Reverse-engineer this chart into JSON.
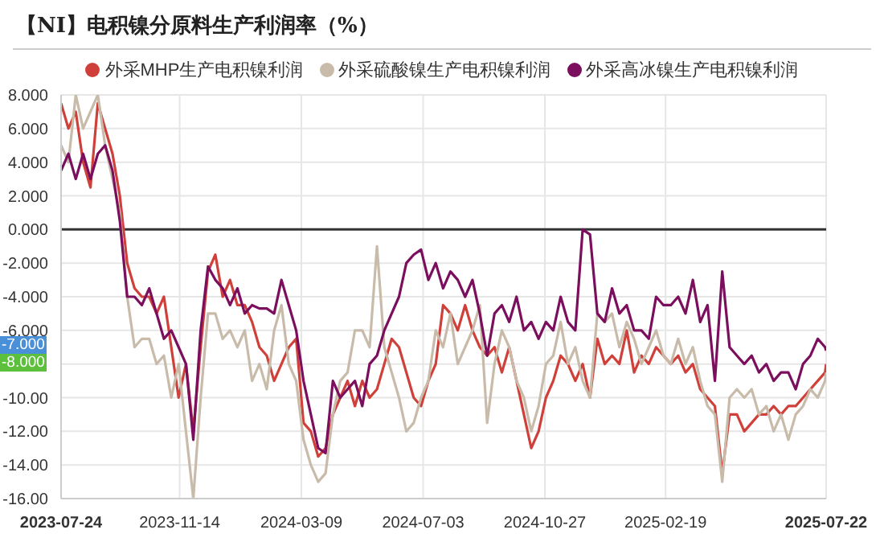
{
  "chart_data": {
    "type": "line",
    "title": "【NI】电积镍分原料生产利润率（%）",
    "x": [
      "2023-07-24",
      "2023-07-31",
      "2023-08-07",
      "2023-08-14",
      "2023-08-21",
      "2023-08-28",
      "2023-09-04",
      "2023-09-11",
      "2023-09-18",
      "2023-09-25",
      "2023-10-02",
      "2023-10-09",
      "2023-10-16",
      "2023-10-23",
      "2023-10-30",
      "2023-11-06",
      "2023-11-13",
      "2023-11-20",
      "2023-11-27",
      "2023-12-04",
      "2023-12-11",
      "2023-12-18",
      "2023-12-25",
      "2024-01-01",
      "2024-01-08",
      "2024-01-15",
      "2024-01-22",
      "2024-01-29",
      "2024-02-05",
      "2024-02-12",
      "2024-02-19",
      "2024-02-26",
      "2024-03-04",
      "2024-03-11",
      "2024-03-18",
      "2024-03-25",
      "2024-04-01",
      "2024-04-08",
      "2024-04-15",
      "2024-04-22",
      "2024-04-29",
      "2024-05-06",
      "2024-05-13",
      "2024-05-20",
      "2024-05-27",
      "2024-06-03",
      "2024-06-10",
      "2024-06-17",
      "2024-06-24",
      "2024-07-01",
      "2024-07-08",
      "2024-07-15",
      "2024-07-22",
      "2024-07-29",
      "2024-08-05",
      "2024-08-12",
      "2024-08-19",
      "2024-08-26",
      "2024-09-02",
      "2024-09-09",
      "2024-09-16",
      "2024-09-23",
      "2024-09-30",
      "2024-10-07",
      "2024-10-14",
      "2024-10-21",
      "2024-10-28",
      "2024-11-04",
      "2024-11-11",
      "2024-11-18",
      "2024-11-25",
      "2024-12-02",
      "2024-12-09",
      "2024-12-16",
      "2024-12-23",
      "2024-12-30",
      "2025-01-06",
      "2025-01-13",
      "2025-01-20",
      "2025-01-27",
      "2025-02-03",
      "2025-02-10",
      "2025-02-17",
      "2025-02-24",
      "2025-03-03",
      "2025-03-10",
      "2025-03-17",
      "2025-03-24",
      "2025-03-31",
      "2025-04-07",
      "2025-04-14",
      "2025-04-21",
      "2025-04-28",
      "2025-05-05",
      "2025-05-12",
      "2025-05-19",
      "2025-05-26",
      "2025-06-02",
      "2025-06-09",
      "2025-06-16",
      "2025-06-23",
      "2025-06-30",
      "2025-07-07",
      "2025-07-14",
      "2025-07-21",
      "2025-07-22"
    ],
    "series": [
      {
        "name": "外采MHP生产电积镍利润",
        "color": "#d0403a",
        "values": [
          7.5,
          6,
          7,
          4,
          2.5,
          7.5,
          6,
          4.5,
          2,
          -2,
          -3.5,
          -4,
          -4,
          -5,
          -4,
          -7,
          -10,
          -8,
          -12,
          -7,
          -2.5,
          -1.5,
          -4,
          -3,
          -4.5,
          -4.5,
          -5.5,
          -7,
          -7.5,
          -9,
          -8,
          -7,
          -6.5,
          -11.5,
          -12,
          -13.5,
          -13,
          -11,
          -10,
          -9,
          -10.5,
          -9,
          -10,
          -9.5,
          -8,
          -6.5,
          -7,
          -8.5,
          -10,
          -10.5,
          -9,
          -8,
          -4.5,
          -5,
          -6,
          -4.5,
          -6,
          -7,
          -7.5,
          -7,
          -8.5,
          -7,
          -9,
          -11,
          -13,
          -12,
          -10,
          -9,
          -7.5,
          -8,
          -9,
          -8,
          -10,
          -6.5,
          -8,
          -7.5,
          -8,
          -6,
          -8.5,
          -7.5,
          -8,
          -7,
          -7.5,
          -8,
          -7.5,
          -8.5,
          -8,
          -9.5,
          -10,
          -10.5,
          -14.5,
          -11,
          -11,
          -12,
          -11.5,
          -11,
          -11,
          -10.5,
          -11,
          -10.5,
          -10.5,
          -10,
          -9.5,
          -9,
          -8.5,
          -8
        ]
      },
      {
        "name": "外采硫酸镍生产电积镍利润",
        "color": "#c9bba9",
        "values": [
          5,
          4,
          8,
          6,
          7,
          8,
          5,
          3,
          1,
          -4,
          -7,
          -6.5,
          -6.5,
          -8,
          -7.5,
          -10,
          -8,
          -12,
          -16,
          -10,
          -5,
          -5,
          -6.5,
          -6,
          -7,
          -6,
          -9,
          -8,
          -9.5,
          -6,
          -4.5,
          -8,
          -9,
          -12.5,
          -14,
          -15,
          -14.5,
          -11,
          -9,
          -8.5,
          -6,
          -6,
          -7,
          -1,
          -7,
          -8.5,
          -10,
          -12,
          -11.5,
          -10,
          -9,
          -6,
          -7,
          -5,
          -8,
          -7,
          -6,
          -4.5,
          -11.5,
          -8,
          -6,
          -7,
          -9,
          -10,
          -12,
          -10.5,
          -8,
          -7.5,
          -5.5,
          -8,
          -7,
          -9,
          -10,
          -5,
          -5.5,
          -5,
          -7,
          -5.5,
          -6.5,
          -8,
          -7,
          -6,
          -7.5,
          -8,
          -6.5,
          -8,
          -7,
          -9,
          -10.5,
          -11,
          -15,
          -10,
          -9.5,
          -10,
          -9.5,
          -11,
          -10.5,
          -12,
          -11,
          -12.5,
          -11,
          -10.5,
          -9.5,
          -10,
          -9,
          -8.5
        ]
      },
      {
        "name": "外采高冰镍生产电积镍利润",
        "color": "#7b0f5e",
        "values": [
          3.5,
          4.5,
          3,
          4.5,
          3,
          4.5,
          5,
          3.5,
          0.5,
          -4,
          -4,
          -4.5,
          -3.5,
          -5,
          -6.5,
          -6,
          -7,
          -8,
          -12.5,
          -6,
          -2.2,
          -3,
          -3.5,
          -4.5,
          -3.5,
          -5,
          -4.5,
          -4.7,
          -4.7,
          -5,
          -3,
          -4.5,
          -6,
          -9,
          -11,
          -13,
          -13.3,
          -9,
          -10,
          -9.5,
          -9,
          -10.5,
          -8,
          -7.5,
          -6,
          -5,
          -4,
          -2,
          -1.5,
          -1.2,
          -3,
          -2,
          -3.5,
          -2.5,
          -3,
          -4,
          -3,
          -5,
          -7.5,
          -5,
          -4.5,
          -5.5,
          -4,
          -6,
          -5.5,
          -6.5,
          -5.5,
          -6,
          -4,
          -5.5,
          -6,
          0,
          -0.3,
          -5,
          -5.5,
          -3.5,
          -5,
          -4.5,
          -6,
          -6,
          -6.5,
          -4,
          -4.5,
          -4.5,
          -4,
          -5,
          -3,
          -5.5,
          -4.5,
          -9,
          -2.5,
          -7,
          -7.5,
          -8,
          -7.5,
          -8.5,
          -8,
          -9,
          -8.5,
          -8.5,
          -9.5,
          -8,
          -7.5,
          -6.5,
          -7,
          -7.2
        ]
      }
    ],
    "xlim": [
      "2023-07-24",
      "2025-07-22"
    ],
    "xticks": [
      {
        "value": "2023-07-24",
        "label": "2023-07-24"
      },
      {
        "value": "2023-11-14",
        "label": "2023-11-14"
      },
      {
        "value": "2024-03-09",
        "label": "2024-03-09"
      },
      {
        "value": "2024-07-03",
        "label": "2024-07-03"
      },
      {
        "value": "2024-10-27",
        "label": "2024-10-27"
      },
      {
        "value": "2025-02-19",
        "label": "2025-02-19"
      },
      {
        "value": "2025-07-22",
        "label": "2025-07-22"
      }
    ],
    "ylim": [
      -16,
      8
    ],
    "yticks": [
      {
        "value": 8,
        "label": "8.000"
      },
      {
        "value": 6,
        "label": "6.000"
      },
      {
        "value": 4,
        "label": "4.000"
      },
      {
        "value": 2,
        "label": "2.000"
      },
      {
        "value": 0,
        "label": "0.000"
      },
      {
        "value": -2,
        "label": "-2.000"
      },
      {
        "value": -4,
        "label": "-4.000"
      },
      {
        "value": -6,
        "label": "-6.000"
      },
      {
        "value": -8,
        "label": null
      },
      {
        "value": -10,
        "label": "-10.00"
      },
      {
        "value": -12,
        "label": "-12.00"
      },
      {
        "value": -14,
        "label": "-14.00"
      },
      {
        "value": -16,
        "label": "-16.00"
      }
    ],
    "ref_lines": [
      {
        "axis": "y",
        "value": 0,
        "color": "#333333"
      }
    ],
    "annotations": [
      "-7.000",
      "-8.000"
    ],
    "grid": true,
    "legend": "top",
    "marker": "none",
    "line_style": "solid"
  }
}
